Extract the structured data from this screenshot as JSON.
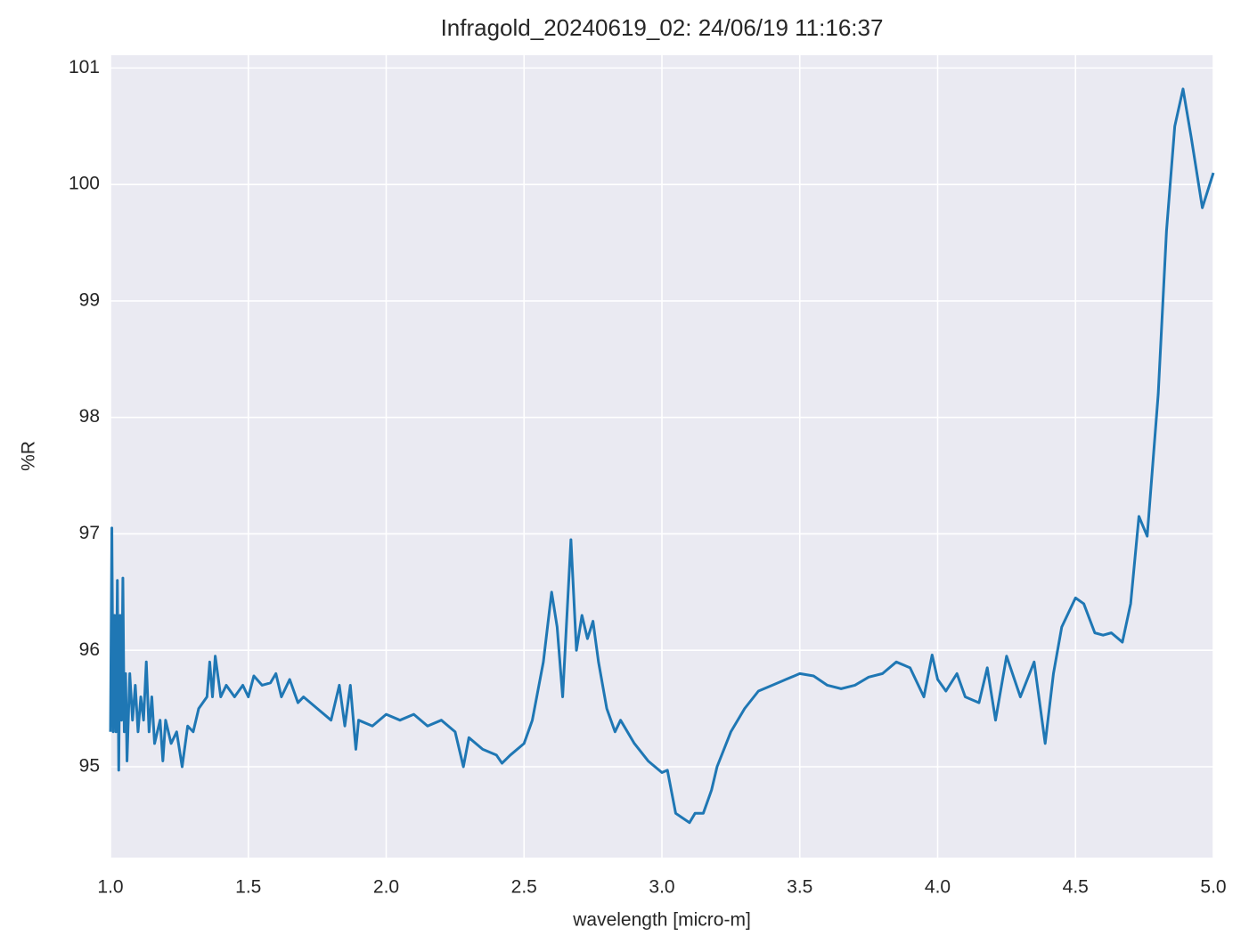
{
  "chart_data": {
    "type": "line",
    "title": "Infragold_20240619_02:  24/06/19 11:16:37",
    "x_label": "wavelength [micro-m]",
    "y_label": "%R",
    "xlim": [
      1,
      5
    ],
    "ylim": [
      94.22,
      101.11
    ],
    "xticks": [
      {
        "value": 1,
        "label": "1.0"
      },
      1.5,
      {
        "value": 2,
        "label": "2.0"
      },
      2.5,
      {
        "value": 3,
        "label": "3.0"
      },
      3.5,
      {
        "value": 4,
        "label": "4.0"
      },
      4.5,
      {
        "value": 5,
        "label": "5.0"
      }
    ],
    "yticks": [
      95,
      96,
      97,
      98,
      99,
      100,
      101
    ],
    "grid": true,
    "x": [
      1.0,
      1.005,
      1.01,
      1.015,
      1.02,
      1.025,
      1.03,
      1.035,
      1.04,
      1.045,
      1.05,
      1.055,
      1.06,
      1.07,
      1.08,
      1.09,
      1.1,
      1.11,
      1.12,
      1.13,
      1.14,
      1.15,
      1.16,
      1.18,
      1.19,
      1.2,
      1.22,
      1.24,
      1.26,
      1.28,
      1.3,
      1.32,
      1.35,
      1.36,
      1.37,
      1.38,
      1.4,
      1.42,
      1.45,
      1.48,
      1.5,
      1.52,
      1.55,
      1.58,
      1.6,
      1.62,
      1.65,
      1.68,
      1.7,
      1.75,
      1.8,
      1.83,
      1.85,
      1.87,
      1.89,
      1.9,
      1.95,
      2.0,
      2.05,
      2.1,
      2.15,
      2.2,
      2.25,
      2.28,
      2.3,
      2.35,
      2.4,
      2.42,
      2.45,
      2.5,
      2.53,
      2.57,
      2.6,
      2.62,
      2.64,
      2.66,
      2.67,
      2.69,
      2.71,
      2.73,
      2.75,
      2.77,
      2.8,
      2.83,
      2.85,
      2.9,
      2.95,
      3.0,
      3.02,
      3.05,
      3.1,
      3.12,
      3.15,
      3.18,
      3.2,
      3.25,
      3.3,
      3.35,
      3.4,
      3.45,
      3.5,
      3.55,
      3.6,
      3.65,
      3.7,
      3.75,
      3.8,
      3.85,
      3.9,
      3.95,
      3.98,
      4.0,
      4.03,
      4.07,
      4.1,
      4.15,
      4.18,
      4.21,
      4.25,
      4.3,
      4.35,
      4.39,
      4.42,
      4.45,
      4.5,
      4.53,
      4.57,
      4.6,
      4.63,
      4.67,
      4.7,
      4.73,
      4.76,
      4.8,
      4.83,
      4.86,
      4.89,
      4.92,
      4.96,
      5.0
    ],
    "series": [
      {
        "color": "#1f77b4",
        "values": [
          95.3,
          97.05,
          95.3,
          96.3,
          95.3,
          96.6,
          94.97,
          96.3,
          95.4,
          96.62,
          95.3,
          95.8,
          95.05,
          95.8,
          95.4,
          95.7,
          95.3,
          95.6,
          95.4,
          95.9,
          95.3,
          95.6,
          95.2,
          95.4,
          95.05,
          95.4,
          95.2,
          95.3,
          95.0,
          95.35,
          95.3,
          95.5,
          95.6,
          95.9,
          95.6,
          95.95,
          95.6,
          95.7,
          95.6,
          95.7,
          95.6,
          95.78,
          95.7,
          95.72,
          95.8,
          95.6,
          95.75,
          95.55,
          95.6,
          95.5,
          95.4,
          95.7,
          95.35,
          95.7,
          95.15,
          95.4,
          95.35,
          95.45,
          95.4,
          95.45,
          95.35,
          95.4,
          95.3,
          95.0,
          95.25,
          95.15,
          95.1,
          95.03,
          95.1,
          95.2,
          95.4,
          95.9,
          96.5,
          96.2,
          95.6,
          96.5,
          96.95,
          96.0,
          96.3,
          96.1,
          96.25,
          95.9,
          95.5,
          95.3,
          95.4,
          95.2,
          95.05,
          94.95,
          94.97,
          94.6,
          94.52,
          94.6,
          94.6,
          94.8,
          95.0,
          95.3,
          95.5,
          95.65,
          95.7,
          95.75,
          95.8,
          95.78,
          95.7,
          95.67,
          95.7,
          95.77,
          95.8,
          95.9,
          95.85,
          95.6,
          95.96,
          95.75,
          95.65,
          95.8,
          95.6,
          95.55,
          95.85,
          95.4,
          95.95,
          95.6,
          95.9,
          95.2,
          95.8,
          96.2,
          96.45,
          96.4,
          96.15,
          96.13,
          96.15,
          96.07,
          96.4,
          97.15,
          96.98,
          98.2,
          99.6,
          100.5,
          100.82,
          100.4,
          99.8,
          100.1
        ]
      }
    ]
  }
}
